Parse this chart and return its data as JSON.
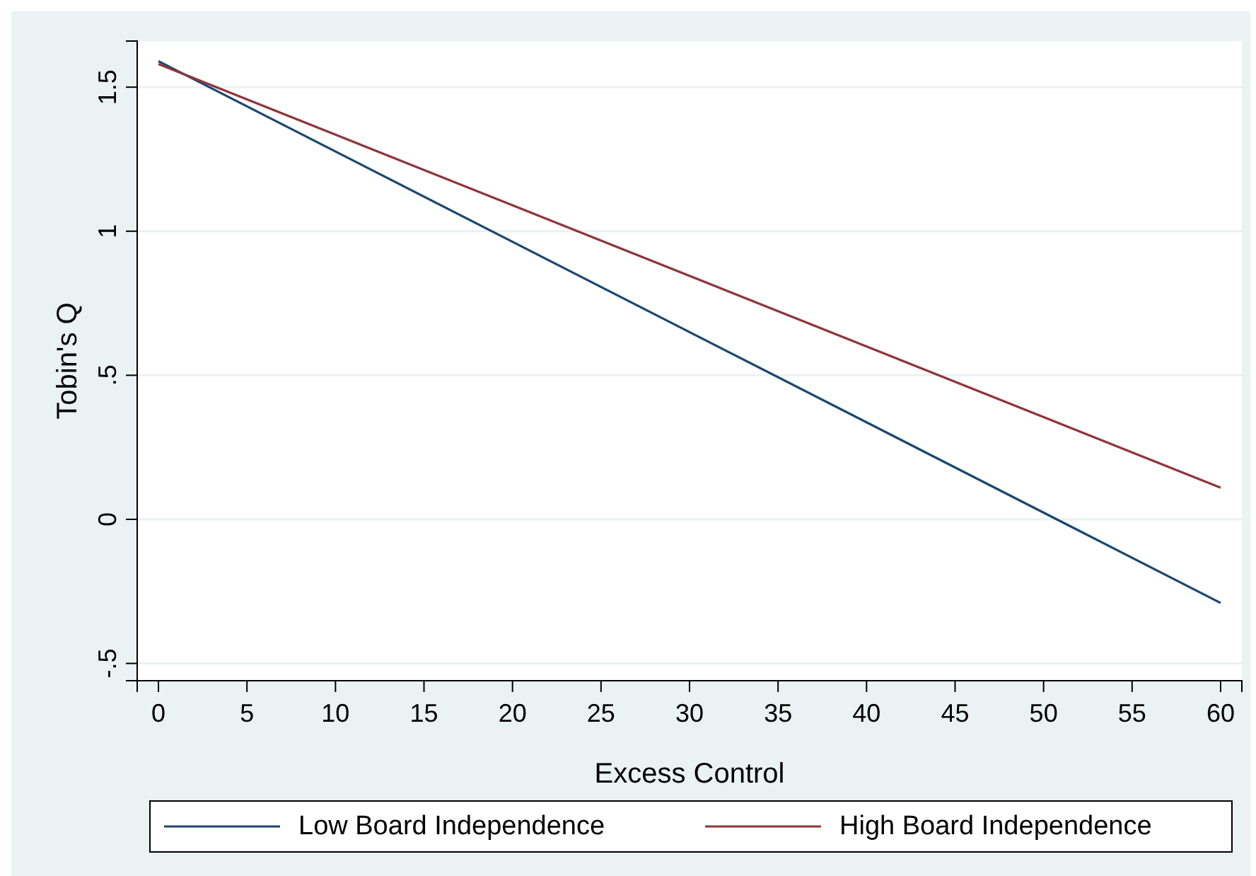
{
  "chart_data": {
    "type": "line",
    "xlabel": "Excess Control",
    "ylabel": "Tobin's Q",
    "xlim": [
      -1.2,
      61.2
    ],
    "xticks": [
      0,
      5,
      10,
      15,
      20,
      25,
      30,
      35,
      40,
      45,
      50,
      55,
      60
    ],
    "ylim": [
      -0.56,
      1.66
    ],
    "yticks": [
      {
        "value": -0.5,
        "label": "-.5"
      },
      0,
      {
        "value": 0.5,
        "label": ".5"
      },
      1,
      1.5
    ],
    "grid": "y",
    "legend": "bottom",
    "x": [
      0,
      60
    ],
    "series": [
      {
        "name": "Low Board Independence",
        "color": "#1a476f",
        "values": [
          1.59,
          -0.29
        ]
      },
      {
        "name": "High Board Independence",
        "color": "#90353b",
        "values": [
          1.58,
          0.11
        ]
      }
    ]
  }
}
